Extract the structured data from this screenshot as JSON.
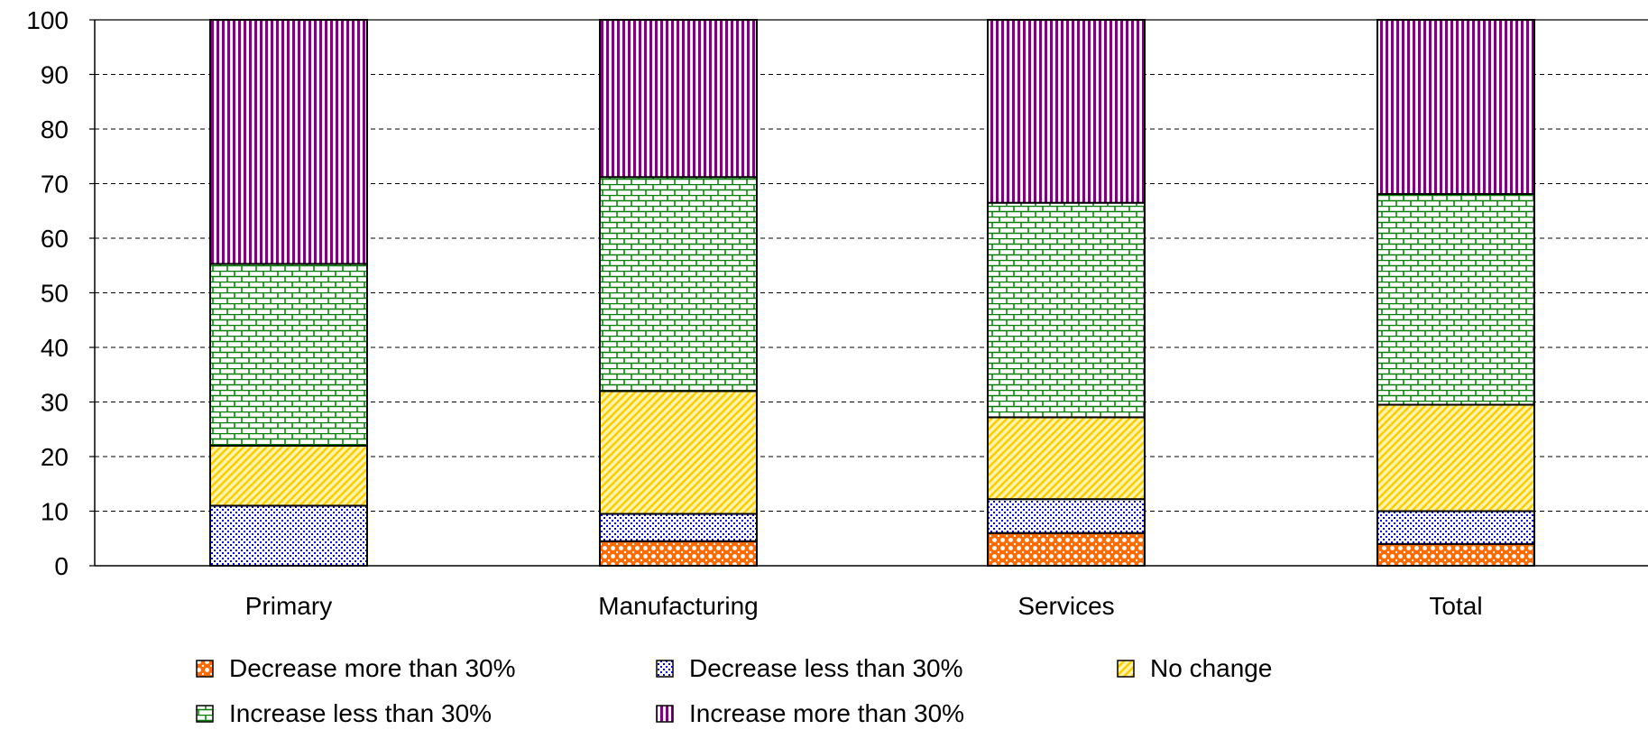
{
  "chart_data": {
    "type": "bar",
    "stacked": true,
    "categories": [
      "Primary",
      "Manufacturing",
      "Services",
      "Total"
    ],
    "series": [
      {
        "name": "Decrease more than 30%",
        "color": "#ff6a00",
        "pattern": "dots-large",
        "values": [
          0,
          4.5,
          6,
          4
        ]
      },
      {
        "name": "Decrease less than 30%",
        "color": "#0000ff",
        "pattern": "dots-small",
        "values": [
          11,
          5,
          6.2,
          6
        ]
      },
      {
        "name": "No change",
        "color": "#ffcc00",
        "pattern": "diagonal",
        "values": [
          11,
          22.5,
          15,
          19.5
        ]
      },
      {
        "name": "Increase less than 30%",
        "color": "#008000",
        "pattern": "brick",
        "values": [
          33.3,
          39.2,
          39.3,
          38.6
        ]
      },
      {
        "name": "Increase more than 30%",
        "color": "#800080",
        "pattern": "vertical",
        "values": [
          44.7,
          28.8,
          33.5,
          31.9
        ]
      }
    ],
    "yticks": [
      0,
      10,
      20,
      30,
      40,
      50,
      60,
      70,
      80,
      90,
      100
    ],
    "ylim": [
      0,
      100
    ],
    "grid": true,
    "legend_position": "bottom"
  }
}
